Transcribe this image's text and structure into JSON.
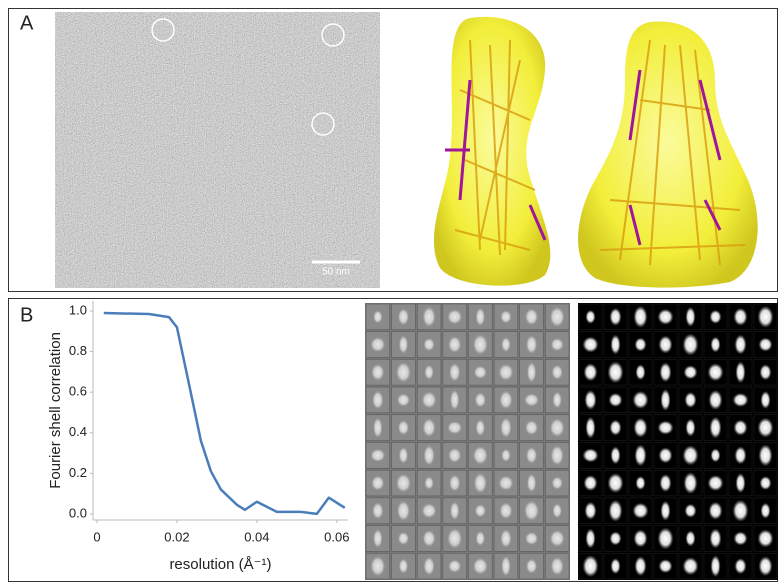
{
  "panels": {
    "a": {
      "label": "A",
      "scale_bar": "50 nm"
    },
    "b": {
      "label": "B"
    }
  },
  "chart_data": {
    "type": "line",
    "x_label": "resolution (Å⁻¹)",
    "y_label": "Fourier shell correlation",
    "x": [
      0.0017,
      0.013,
      0.018,
      0.02,
      0.0228,
      0.026,
      0.0285,
      0.031,
      0.035,
      0.037,
      0.04,
      0.045,
      0.051,
      0.055,
      0.058,
      0.062
    ],
    "values": [
      0.99,
      0.985,
      0.97,
      0.92,
      0.66,
      0.36,
      0.21,
      0.12,
      0.045,
      0.02,
      0.06,
      0.01,
      0.01,
      0.0,
      0.08,
      0.03
    ],
    "color": "#4a7ebb",
    "xlim": [
      -0.001,
      0.0628
    ],
    "xticks": [
      0,
      0.02,
      0.04,
      0.06
    ],
    "ylim": [
      -0.03,
      1.05
    ],
    "yticks": [
      {
        "value": 0,
        "label": "0.0"
      },
      0.2,
      0.4,
      0.6,
      0.8,
      {
        "value": 1,
        "label": "1.0"
      }
    ]
  }
}
